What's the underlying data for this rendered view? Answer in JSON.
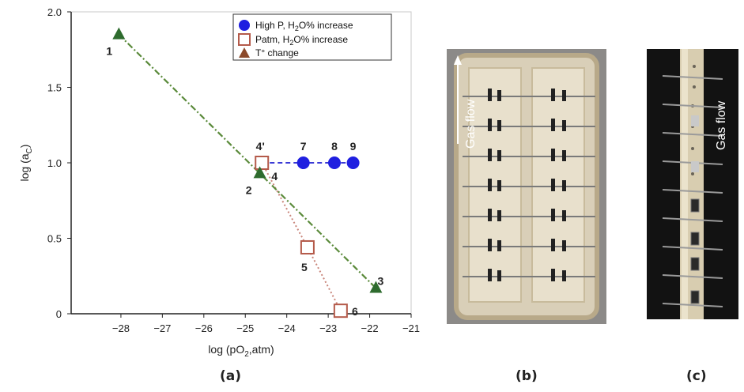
{
  "chart_data": {
    "type": "scatter",
    "xlabel": "log (pO2,atm)",
    "ylabel": "log (aC)",
    "xlim": [
      -29.2,
      -21
    ],
    "ylim": [
      0,
      2.0
    ],
    "xticks": [
      -28,
      -27,
      -26,
      -25,
      -24,
      -23,
      -22,
      -21
    ],
    "yticks": [
      0,
      0.5,
      1.0,
      1.5,
      2.0
    ],
    "x_tick_labels": [
      "−28",
      "−27",
      "−26",
      "−25",
      "−24",
      "−23",
      "−22",
      "−21"
    ],
    "y_tick_labels": [
      "0",
      "0.5",
      "1.0",
      "1.5",
      "2.0"
    ],
    "legend_position": "top-right",
    "series": [
      {
        "name": "High P, H2O% increase",
        "marker": "circle",
        "color": "#1f1fe0",
        "line_color": "#3b3bd6",
        "points": [
          {
            "x": -24.6,
            "y": 1.0,
            "label": "4'"
          },
          {
            "x": -23.6,
            "y": 1.0,
            "label": "7"
          },
          {
            "x": -22.85,
            "y": 1.0,
            "label": "8"
          },
          {
            "x": -22.4,
            "y": 1.0,
            "label": "9"
          }
        ]
      },
      {
        "name": "Patm, H2O% increase",
        "marker": "square",
        "color": "#b45a4a",
        "line_color": "#c9867b",
        "points": [
          {
            "x": -24.6,
            "y": 1.0,
            "label": "4"
          },
          {
            "x": -23.5,
            "y": 0.44,
            "label": "5"
          },
          {
            "x": -22.7,
            "y": 0.02,
            "label": "6"
          }
        ]
      },
      {
        "name": "T° change",
        "marker": "triangle",
        "color": "#2e6b2e",
        "line_color": "#5a8a3a",
        "points": [
          {
            "x": -28.05,
            "y": 1.85,
            "label": "1"
          },
          {
            "x": -24.65,
            "y": 0.93,
            "label": "2"
          },
          {
            "x": -21.85,
            "y": 0.17,
            "label": "3"
          }
        ]
      }
    ],
    "legend_entries": [
      {
        "text_main": "High P, H",
        "sub": "2",
        "text_rest": "O% increase"
      },
      {
        "text_main": "Patm, H",
        "sub": "2",
        "text_rest": "O% increase"
      },
      {
        "text_main": "T° change",
        "sub": "",
        "text_rest": ""
      }
    ]
  },
  "panels": {
    "a": "(a)",
    "b": "(b)",
    "c": "(c)"
  },
  "photos": {
    "b_label": "Gas flow",
    "c_label": "Gas flow"
  }
}
